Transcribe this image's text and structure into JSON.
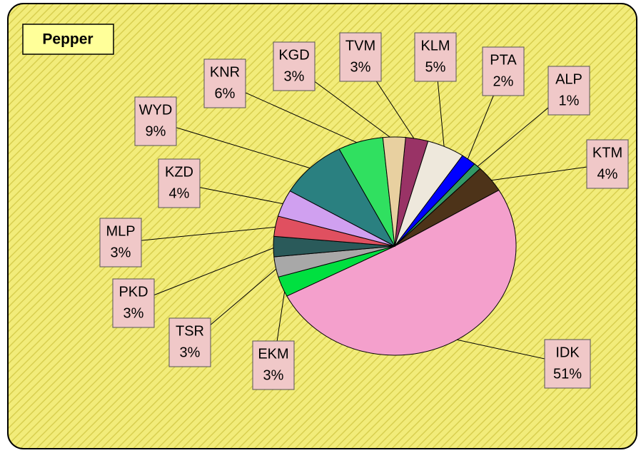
{
  "chart_data": {
    "type": "pie",
    "title": "Pepper",
    "categories": [
      "TVM",
      "KLM",
      "PTA",
      "ALP",
      "KTM",
      "IDK",
      "EKM",
      "TSR",
      "PKD",
      "MLP",
      "KZD",
      "WYD",
      "KNR",
      "KGD"
    ],
    "values": [
      3,
      5,
      2,
      1,
      4,
      51,
      3,
      3,
      3,
      3,
      4,
      9,
      6,
      3
    ],
    "value_labels": [
      "3%",
      "5%",
      "2%",
      "1%",
      "4%",
      "51%",
      "3%",
      "3%",
      "3%",
      "3%",
      "4%",
      "9%",
      "6%",
      "3%"
    ],
    "colors": [
      "#993366",
      "#eee8dc",
      "#0000ff",
      "#339966",
      "#4d3319",
      "#f4a0cc",
      "#00e040",
      "#a8a8a8",
      "#2a5a5a",
      "#e05060",
      "#d0a0f0",
      "#2a8080",
      "#30e060",
      "#e8d0a0"
    ]
  }
}
